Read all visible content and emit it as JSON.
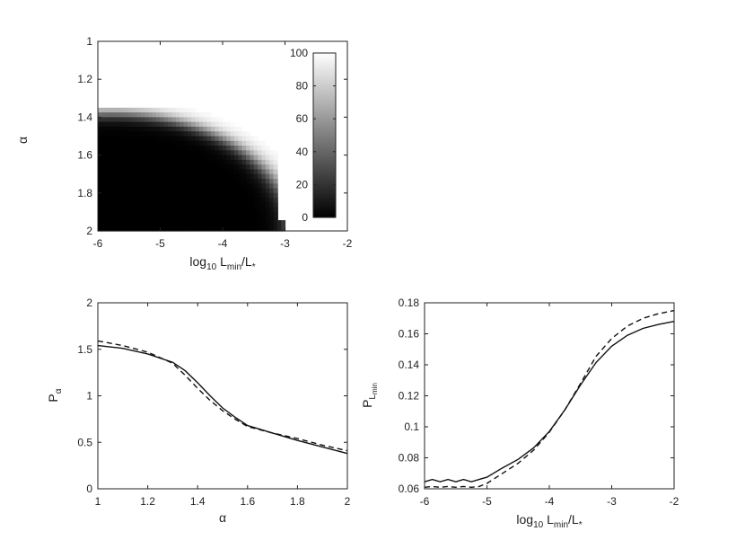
{
  "chart_data": [
    {
      "type": "heatmap",
      "xlabel": {
        "base": "log",
        "sub1": "10",
        "mid": " L",
        "sub2": "min",
        "tail": "/L",
        "sub3": "*"
      },
      "ylabel": "α",
      "xlim": [
        -6,
        -2
      ],
      "ylim": [
        1,
        2
      ],
      "y_reversed": true,
      "xticks": [
        -6,
        -5,
        -4,
        -3,
        -2
      ],
      "yticks": [
        1,
        1.2,
        1.4,
        1.6,
        1.8,
        2
      ],
      "colorbar": {
        "range": [
          0,
          100
        ],
        "ticks": [
          0,
          20,
          40,
          60,
          80,
          100
        ],
        "colormap": "gray"
      },
      "field": {
        "x_range": [
          -6,
          -3
        ],
        "y_range": [
          1.35,
          2
        ],
        "center": [
          -5.8,
          2.0
        ],
        "radius_alpha": 0.62,
        "radius_logL": 2.9,
        "transition_width": 0.17
      }
    },
    {
      "type": "line",
      "xlabel": "α",
      "ylabel": {
        "base": "P",
        "sub": "α"
      },
      "xlim": [
        1,
        2
      ],
      "ylim": [
        0,
        2
      ],
      "xticks": [
        1,
        1.2,
        1.4,
        1.6,
        1.8,
        2
      ],
      "yticks": [
        0,
        0.5,
        1,
        1.5,
        2
      ],
      "series": [
        {
          "style": "solid",
          "x": [
            1.0,
            1.1,
            1.2,
            1.3,
            1.35,
            1.4,
            1.45,
            1.5,
            1.55,
            1.6,
            1.7,
            1.8,
            1.9,
            2.0
          ],
          "y": [
            1.54,
            1.51,
            1.45,
            1.36,
            1.27,
            1.14,
            1.0,
            0.87,
            0.77,
            0.68,
            0.6,
            0.52,
            0.45,
            0.38
          ]
        },
        {
          "style": "dashed",
          "x": [
            1.0,
            1.1,
            1.2,
            1.3,
            1.35,
            1.4,
            1.45,
            1.5,
            1.55,
            1.6,
            1.7,
            1.8,
            1.9,
            2.0
          ],
          "y": [
            1.59,
            1.54,
            1.47,
            1.35,
            1.22,
            1.08,
            0.95,
            0.84,
            0.75,
            0.67,
            0.6,
            0.54,
            0.47,
            0.41
          ]
        }
      ]
    },
    {
      "type": "line",
      "xlabel": {
        "base": "log",
        "sub1": "10",
        "mid": " L",
        "sub2": "min",
        "tail": "/L",
        "sub3": "*"
      },
      "ylabel": {
        "base": "P",
        "sub": "L",
        "subsub": "min"
      },
      "xlim": [
        -6,
        -2
      ],
      "ylim": [
        0.06,
        0.18
      ],
      "xticks": [
        -6,
        -5,
        -4,
        -3,
        -2
      ],
      "yticks": [
        0.06,
        0.08,
        0.1,
        0.12,
        0.14,
        0.16,
        0.18
      ],
      "series": [
        {
          "style": "solid",
          "x": [
            -6.0,
            -5.875,
            -5.75,
            -5.625,
            -5.5,
            -5.375,
            -5.25,
            -5.125,
            -5.0,
            -4.75,
            -4.5,
            -4.25,
            -4.0,
            -3.75,
            -3.5,
            -3.25,
            -3.0,
            -2.75,
            -2.5,
            -2.25,
            -2.0
          ],
          "y": [
            0.0645,
            0.066,
            0.0645,
            0.066,
            0.0645,
            0.066,
            0.0645,
            0.066,
            0.0675,
            0.0735,
            0.079,
            0.0865,
            0.097,
            0.111,
            0.127,
            0.1415,
            0.152,
            0.159,
            0.1635,
            0.166,
            0.168
          ]
        },
        {
          "style": "dashed",
          "x": [
            -6.0,
            -5.875,
            -5.75,
            -5.625,
            -5.5,
            -5.375,
            -5.25,
            -5.125,
            -5.0,
            -4.75,
            -4.5,
            -4.25,
            -4.0,
            -3.75,
            -3.5,
            -3.25,
            -3.0,
            -2.75,
            -2.5,
            -2.25,
            -2.0
          ],
          "y": [
            0.061,
            0.0615,
            0.061,
            0.0615,
            0.061,
            0.0615,
            0.061,
            0.0615,
            0.0635,
            0.07,
            0.0765,
            0.085,
            0.0965,
            0.111,
            0.128,
            0.1455,
            0.157,
            0.165,
            0.17,
            0.173,
            0.175
          ]
        }
      ]
    }
  ]
}
